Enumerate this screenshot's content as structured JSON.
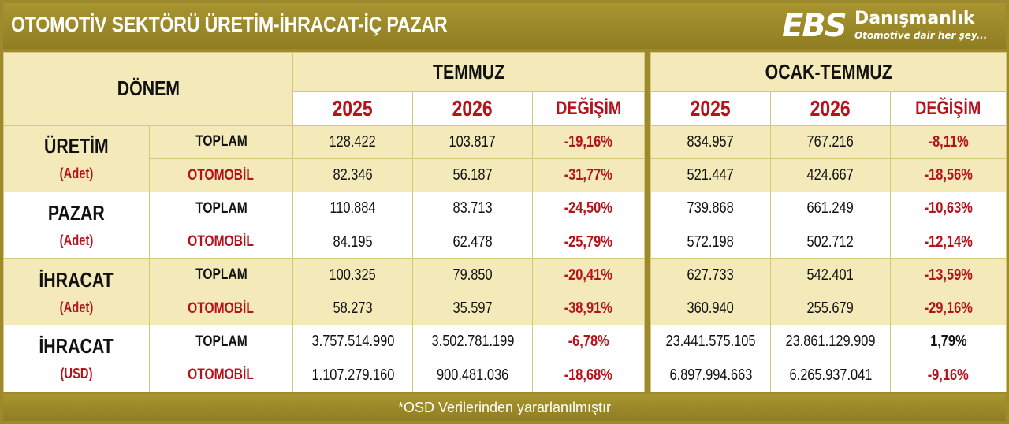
{
  "header": {
    "title": "OTOMOTİV SEKTÖRÜ  ÜRETİM-İHRACAT-İÇ PAZAR",
    "logo_letters": "EBS",
    "logo_name": "Danışmanlık",
    "logo_tagline": "Otomotive dair her şey..."
  },
  "table": {
    "period_label": "DÖNEM",
    "group_month": "TEMMUZ",
    "group_ytd": "OCAK-TEMMUZ",
    "year_a": "2025",
    "year_b": "2026",
    "change_label": "DEĞİŞİM",
    "categories": [
      {
        "name": "ÜRETİM",
        "unit": "(Adet)",
        "rows": [
          {
            "label": "TOPLAM",
            "m_2025": "128.422",
            "m_2026": "103.817",
            "m_chg": "-19,16%",
            "y_2025": "834.957",
            "y_2026": "767.216",
            "y_chg": "-8,11%"
          },
          {
            "label": "OTOMOBİL",
            "m_2025": "82.346",
            "m_2026": "56.187",
            "m_chg": "-31,77%",
            "y_2025": "521.447",
            "y_2026": "424.667",
            "y_chg": "-18,56%"
          }
        ]
      },
      {
        "name": "PAZAR",
        "unit": "(Adet)",
        "rows": [
          {
            "label": "TOPLAM",
            "m_2025": "110.884",
            "m_2026": "83.713",
            "m_chg": "-24,50%",
            "y_2025": "739.868",
            "y_2026": "661.249",
            "y_chg": "-10,63%"
          },
          {
            "label": "OTOMOBİL",
            "m_2025": "84.195",
            "m_2026": "62.478",
            "m_chg": "-25,79%",
            "y_2025": "572.198",
            "y_2026": "502.712",
            "y_chg": "-12,14%"
          }
        ]
      },
      {
        "name": "İHRACAT",
        "unit": "(Adet)",
        "rows": [
          {
            "label": "TOPLAM",
            "m_2025": "100.325",
            "m_2026": "79.850",
            "m_chg": "-20,41%",
            "y_2025": "627.733",
            "y_2026": "542.401",
            "y_chg": "-13,59%"
          },
          {
            "label": "OTOMOBİL",
            "m_2025": "58.273",
            "m_2026": "35.597",
            "m_chg": "-38,91%",
            "y_2025": "360.940",
            "y_2026": "255.679",
            "y_chg": "-29,16%"
          }
        ]
      },
      {
        "name": "İHRACAT",
        "unit": "(USD)",
        "rows": [
          {
            "label": "TOPLAM",
            "m_2025": "3.757.514.990",
            "m_2026": "3.502.781.199",
            "m_chg": "-6,78%",
            "y_2025": "23.441.575.105",
            "y_2026": "23.861.129.909",
            "y_chg": "1,79%"
          },
          {
            "label": "OTOMOBİL",
            "m_2025": "1.107.279.160",
            "m_2026": "900.481.036",
            "m_chg": "-18,68%",
            "y_2025": "6.897.994.663",
            "y_2026": "6.265.937.041",
            "y_chg": "-9,16%"
          }
        ]
      }
    ]
  },
  "footer": {
    "note": "*OSD Verilerinden yararlanılmıştır"
  },
  "colors": {
    "gold": "#9d8a2e",
    "band": "#f4eab9",
    "accent_red": "#b5121b"
  }
}
